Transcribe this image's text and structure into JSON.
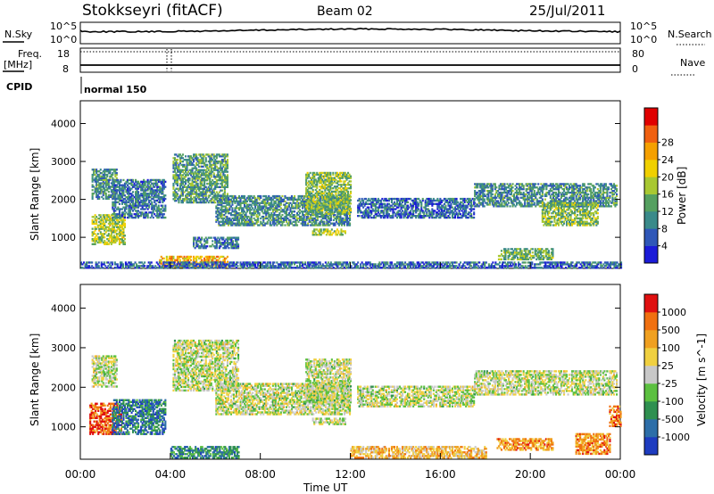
{
  "header": {
    "station": "Stokkseyri (fitACF)",
    "beam": "Beam 02",
    "date": "25/Jul/2011"
  },
  "top_panels": {
    "nsky_label": "N.Sky",
    "nsky_ticks": [
      "10^5",
      "10^0"
    ],
    "nsearch_label": "N.Search",
    "nsearch_ticks": [
      "10^5",
      "10^0"
    ],
    "freq_label": "Freq.",
    "freq_unit": "[MHz]",
    "freq_ticks": [
      "18",
      "8"
    ],
    "nave_label": "Nave",
    "nave_ticks": [
      "80",
      "0"
    ],
    "cpid_label": "CPID",
    "cpid_value": "normal 150"
  },
  "chart_data": [
    {
      "type": "heatmap",
      "name": "power",
      "ylabel": "Slant Range [km]",
      "xlabel": "",
      "ylim": [
        180,
        4600
      ],
      "yticks": [
        1000,
        2000,
        3000,
        4000
      ],
      "xlim": [
        0,
        24
      ],
      "colorbar_label": "Power [dB]",
      "colorbar_ticks": [
        "4",
        "8",
        "12",
        "16",
        "20",
        "24",
        "28"
      ],
      "colorscale": [
        "#1b1bd8",
        "#2f57b8",
        "#3a8a8a",
        "#55a060",
        "#a8c832",
        "#f0d000",
        "#f5a000",
        "#f06010",
        "#e00000"
      ],
      "echo_regions": [
        {
          "t0": 0.5,
          "t1": 1.6,
          "r0": 2000,
          "r1": 2800,
          "level": 0.3
        },
        {
          "t0": 0.5,
          "t1": 2.0,
          "r0": 800,
          "r1": 1600,
          "level": 0.5
        },
        {
          "t0": 1.4,
          "t1": 3.8,
          "r0": 1500,
          "r1": 2500,
          "level": 0.25
        },
        {
          "t0": 4.1,
          "t1": 6.5,
          "r0": 1900,
          "r1": 3200,
          "level": 0.35
        },
        {
          "t0": 5.0,
          "t1": 7.0,
          "r0": 700,
          "r1": 1000,
          "level": 0.25
        },
        {
          "t0": 3.5,
          "t1": 6.5,
          "r0": 200,
          "r1": 500,
          "level": 0.7
        },
        {
          "t0": 6.0,
          "t1": 12.0,
          "r0": 1300,
          "r1": 2100,
          "level": 0.3
        },
        {
          "t0": 10.0,
          "t1": 12.0,
          "r0": 1600,
          "r1": 2700,
          "level": 0.45
        },
        {
          "t0": 10.3,
          "t1": 11.8,
          "r0": 1050,
          "r1": 1200,
          "level": 0.5
        },
        {
          "t0": 12.3,
          "t1": 17.5,
          "r0": 1500,
          "r1": 2000,
          "level": 0.2
        },
        {
          "t0": 17.5,
          "t1": 23.8,
          "r0": 1800,
          "r1": 2400,
          "level": 0.3
        },
        {
          "t0": 20.5,
          "t1": 23.0,
          "r0": 1300,
          "r1": 1900,
          "level": 0.45
        },
        {
          "t0": 18.5,
          "t1": 21.0,
          "r0": 400,
          "r1": 700,
          "level": 0.4
        },
        {
          "t0": 0.0,
          "t1": 24.0,
          "r0": 180,
          "r1": 320,
          "level": 0.2
        }
      ]
    },
    {
      "type": "heatmap",
      "name": "velocity",
      "ylabel": "Slant Range [km]",
      "xlabel": "Time UT",
      "ylim": [
        180,
        4600
      ],
      "yticks": [
        1000,
        2000,
        3000,
        4000
      ],
      "xlim": [
        0,
        24
      ],
      "xticks": [
        "00:00",
        "04:00",
        "08:00",
        "12:00",
        "16:00",
        "20:00",
        "00:00"
      ],
      "colorbar_label": "Velocity [m s^-1]",
      "colorbar_ticks": [
        "1000",
        "500",
        "100",
        "25",
        "-25",
        "-100",
        "-500",
        "-1000"
      ],
      "colorscale": [
        "#1e3cc0",
        "#2d6ea8",
        "#2f9050",
        "#5cc040",
        "#c8c8c8",
        "#f0d040",
        "#f0a020",
        "#f07010",
        "#e01010"
      ],
      "echo_regions": [
        {
          "t0": 0.5,
          "t1": 1.6,
          "r0": 2000,
          "r1": 2800,
          "level": 0.5
        },
        {
          "t0": 0.4,
          "t1": 1.8,
          "r0": 800,
          "r1": 1600,
          "level": 0.85
        },
        {
          "t0": 1.4,
          "t1": 3.8,
          "r0": 800,
          "r1": 1700,
          "level": 0.2
        },
        {
          "t0": 4.1,
          "t1": 7.0,
          "r0": 1900,
          "r1": 3200,
          "level": 0.5
        },
        {
          "t0": 4.0,
          "t1": 7.0,
          "r0": 200,
          "r1": 500,
          "level": 0.25
        },
        {
          "t0": 6.0,
          "t1": 12.0,
          "r0": 1300,
          "r1": 2100,
          "level": 0.5
        },
        {
          "t0": 10.0,
          "t1": 12.0,
          "r0": 1600,
          "r1": 2700,
          "level": 0.5
        },
        {
          "t0": 10.3,
          "t1": 11.8,
          "r0": 1050,
          "r1": 1200,
          "level": 0.5
        },
        {
          "t0": 12.0,
          "t1": 18.0,
          "r0": 200,
          "r1": 500,
          "level": 0.65
        },
        {
          "t0": 12.3,
          "t1": 17.5,
          "r0": 1500,
          "r1": 2000,
          "level": 0.5
        },
        {
          "t0": 17.5,
          "t1": 23.8,
          "r0": 1800,
          "r1": 2400,
          "level": 0.5
        },
        {
          "t0": 18.5,
          "t1": 21.0,
          "r0": 400,
          "r1": 700,
          "level": 0.75
        },
        {
          "t0": 22.0,
          "t1": 23.5,
          "r0": 300,
          "r1": 800,
          "level": 0.75
        },
        {
          "t0": 23.5,
          "t1": 24.0,
          "r0": 1000,
          "r1": 1500,
          "level": 0.8
        }
      ]
    }
  ]
}
